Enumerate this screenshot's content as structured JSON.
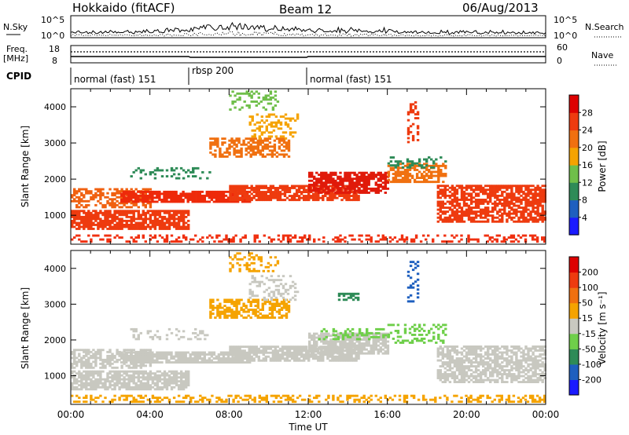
{
  "header": {
    "station": "Hokkaido (fitACF)",
    "beam": "Beam 12",
    "date": "06/Aug/2013"
  },
  "top_panels": {
    "nsky_label": "N.Sky",
    "nsky_ticks": [
      "10^5",
      "10^0"
    ],
    "nsearch_label": "N.Search",
    "nsearch_ticks": [
      "10^5",
      "10^0"
    ],
    "freq_label": "Freq.",
    "freq_unit": "[MHz]",
    "freq_ticks": [
      "18",
      "8"
    ],
    "nave_label": "Nave",
    "nave_ticks": [
      "60",
      "0"
    ],
    "cpid_label": "CPID",
    "cpid_segments": [
      {
        "label": "normal (fast) 151",
        "start_h": 0,
        "end_h": 6
      },
      {
        "label": "rbsp 200",
        "start_h": 6,
        "end_h": 12
      },
      {
        "label": "normal (fast) 151",
        "start_h": 12,
        "end_h": 24
      }
    ]
  },
  "chart_data": [
    {
      "type": "heatmap",
      "name": "power",
      "xlabel": "",
      "ylabel": "Slant Range [km]",
      "xlim": [
        0,
        24
      ],
      "ylim": [
        200,
        4500
      ],
      "yticks": [
        "1000",
        "2000",
        "3000",
        "4000"
      ],
      "colorbar": {
        "label": "Power [dB]",
        "ticks": [
          "4",
          "8",
          "12",
          "16",
          "20",
          "24",
          "28"
        ],
        "colors": [
          "#1a1aff",
          "#1e5fbf",
          "#2e8b57",
          "#6fbf4a",
          "#f5a300",
          "#f07010",
          "#ee3b0f",
          "#dd0000"
        ]
      },
      "bands": [
        {
          "h0": 0.0,
          "h1": 24.0,
          "r0": 250,
          "r1": 420,
          "color": "#f03010",
          "density": 0.35
        },
        {
          "h0": 0.0,
          "h1": 6.0,
          "r0": 600,
          "r1": 1100,
          "color": "#ee3b0f",
          "density": 0.8
        },
        {
          "h0": 0.0,
          "h1": 4.0,
          "r0": 1200,
          "r1": 1700,
          "color": "#f06010",
          "density": 0.55
        },
        {
          "h0": 2.5,
          "h1": 9.0,
          "r0": 1350,
          "r1": 1650,
          "color": "#ee2a0a",
          "density": 0.85
        },
        {
          "h0": 8.0,
          "h1": 14.5,
          "r0": 1400,
          "r1": 1800,
          "color": "#ee3b0f",
          "density": 0.8
        },
        {
          "h0": 12.0,
          "h1": 16.0,
          "r0": 1600,
          "r1": 2200,
          "color": "#e01a0a",
          "density": 0.8
        },
        {
          "h0": 16.0,
          "h1": 19.0,
          "r0": 1900,
          "r1": 2400,
          "color": "#f07010",
          "density": 0.6
        },
        {
          "h0": 18.5,
          "h1": 24.0,
          "r0": 800,
          "r1": 1800,
          "color": "#ee3b0f",
          "density": 0.7
        },
        {
          "h0": 7.0,
          "h1": 11.0,
          "r0": 2600,
          "r1": 3100,
          "color": "#f07010",
          "density": 0.6
        },
        {
          "h0": 9.0,
          "h1": 11.5,
          "r0": 3100,
          "r1": 3800,
          "color": "#f5a300",
          "density": 0.3
        },
        {
          "h0": 3.0,
          "h1": 7.0,
          "r0": 2000,
          "r1": 2300,
          "color": "#2e8b57",
          "density": 0.25
        },
        {
          "h0": 16.0,
          "h1": 19.0,
          "r0": 2300,
          "r1": 2600,
          "color": "#2e8b57",
          "density": 0.3
        },
        {
          "h0": 8.0,
          "h1": 10.5,
          "r0": 3900,
          "r1": 4400,
          "color": "#6fbf4a",
          "density": 0.3
        },
        {
          "h0": 17.0,
          "h1": 17.5,
          "r0": 3000,
          "r1": 4200,
          "color": "#ee3b0f",
          "density": 0.3
        }
      ]
    },
    {
      "type": "heatmap",
      "name": "velocity",
      "xlabel": "Time UT",
      "ylabel": "Slant Range [km]",
      "xlim": [
        0,
        24
      ],
      "ylim": [
        200,
        4500
      ],
      "xticks": [
        "00:00",
        "04:00",
        "08:00",
        "12:00",
        "16:00",
        "20:00",
        "00:00"
      ],
      "yticks": [
        "1000",
        "2000",
        "3000",
        "4000"
      ],
      "colorbar": {
        "label": "Velocity [m s⁻¹]",
        "ticks": [
          "200",
          "100",
          "50",
          "15",
          "-15",
          "-50",
          "-100",
          "-200"
        ],
        "colors": [
          "#1a1aff",
          "#1e5fbf",
          "#2e8b57",
          "#6fcf4a",
          "#c8c8c0",
          "#f5a300",
          "#f07010",
          "#ee3b0f",
          "#dd0000"
        ]
      },
      "bands": [
        {
          "h0": 0.0,
          "h1": 24.0,
          "r0": 250,
          "r1": 420,
          "color": "#f5a300",
          "density": 0.35
        },
        {
          "h0": 0.0,
          "h1": 6.0,
          "r0": 600,
          "r1": 1100,
          "color": "#c8c8c0",
          "density": 0.8
        },
        {
          "h0": 0.0,
          "h1": 4.0,
          "r0": 1200,
          "r1": 1700,
          "color": "#c8c8c0",
          "density": 0.55
        },
        {
          "h0": 2.5,
          "h1": 9.0,
          "r0": 1350,
          "r1": 1650,
          "color": "#c8c8c0",
          "density": 0.85
        },
        {
          "h0": 8.0,
          "h1": 14.5,
          "r0": 1400,
          "r1": 1800,
          "color": "#c8c8c0",
          "density": 0.8
        },
        {
          "h0": 12.0,
          "h1": 16.0,
          "r0": 1600,
          "r1": 2200,
          "color": "#c8c8c0",
          "density": 0.8
        },
        {
          "h0": 16.0,
          "h1": 19.0,
          "r0": 1900,
          "r1": 2400,
          "color": "#6fcf4a",
          "density": 0.35
        },
        {
          "h0": 18.5,
          "h1": 24.0,
          "r0": 800,
          "r1": 1800,
          "color": "#c8c8c0",
          "density": 0.7
        },
        {
          "h0": 7.0,
          "h1": 11.0,
          "r0": 2600,
          "r1": 3100,
          "color": "#f5a300",
          "density": 0.6
        },
        {
          "h0": 9.0,
          "h1": 11.5,
          "r0": 3100,
          "r1": 3800,
          "color": "#c8c8c0",
          "density": 0.3
        },
        {
          "h0": 3.0,
          "h1": 7.0,
          "r0": 2000,
          "r1": 2300,
          "color": "#c8c8c0",
          "density": 0.25
        },
        {
          "h0": 12.5,
          "h1": 16.0,
          "r0": 2000,
          "r1": 2300,
          "color": "#6fcf4a",
          "density": 0.3
        },
        {
          "h0": 8.0,
          "h1": 10.5,
          "r0": 3900,
          "r1": 4400,
          "color": "#f5a300",
          "density": 0.3
        },
        {
          "h0": 17.0,
          "h1": 17.5,
          "r0": 3000,
          "r1": 4200,
          "color": "#1e5fbf",
          "density": 0.2
        },
        {
          "h0": 13.5,
          "h1": 14.5,
          "r0": 3100,
          "r1": 3300,
          "color": "#2e8b57",
          "density": 0.5
        }
      ]
    }
  ]
}
